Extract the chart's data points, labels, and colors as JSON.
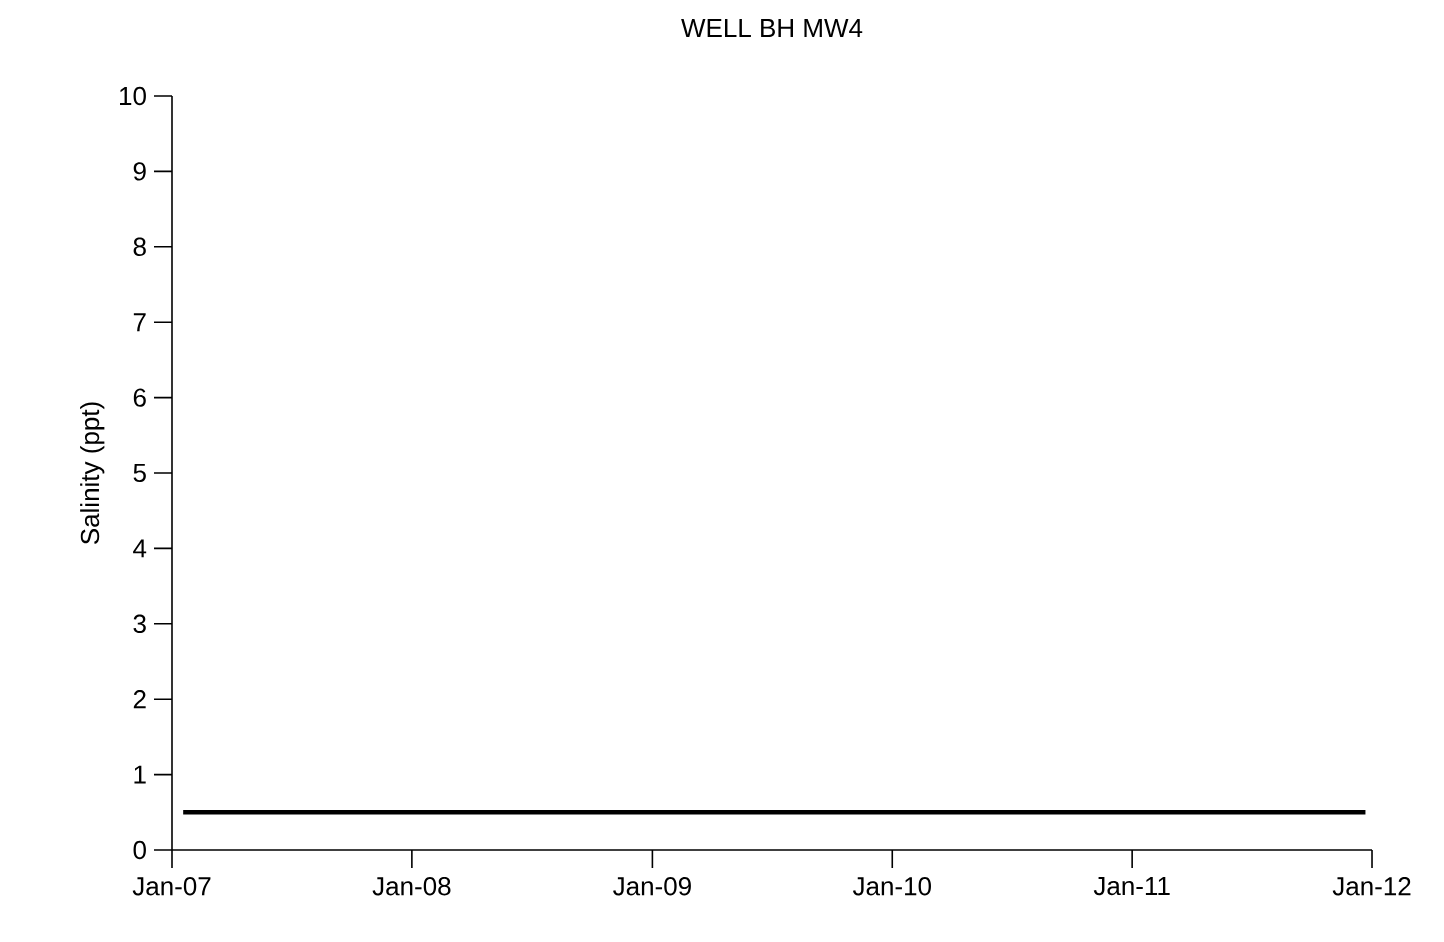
{
  "chart_data": {
    "type": "line",
    "title": "WELL BH MW4",
    "ylabel": "Salinity (ppt)",
    "x": [
      "2007-01-18",
      "2011-12-22"
    ],
    "series": [
      {
        "color": "#000000",
        "values": [
          0.5,
          0.5
        ]
      }
    ],
    "xlim": [
      "2007-01-01",
      "2012-01-01"
    ],
    "xticks": [
      {
        "value": "2007-01-01",
        "label": "Jan-07"
      },
      {
        "value": "2008-01-01",
        "label": "Jan-08"
      },
      {
        "value": "2009-01-01",
        "label": "Jan-09"
      },
      {
        "value": "2010-01-01",
        "label": "Jan-10"
      },
      {
        "value": "2011-01-01",
        "label": "Jan-11"
      },
      {
        "value": "2012-01-01",
        "label": "Jan-12"
      }
    ],
    "ylim": [
      0,
      10
    ],
    "yticks": [
      0,
      1,
      2,
      3,
      4,
      5,
      6,
      7,
      8,
      9,
      10
    ],
    "grid": false,
    "marker": "none",
    "line_style": "solid"
  }
}
